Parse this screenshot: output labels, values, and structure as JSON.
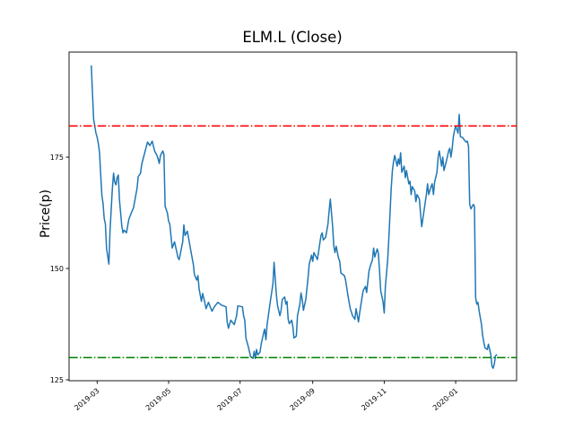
{
  "chart_data": {
    "type": "line",
    "title": "ELM.L (Close)",
    "xlabel": "",
    "ylabel": "Price(p)",
    "grid": false,
    "legend_position": "none",
    "line_color": "#1f77b4",
    "xlim": [
      "2019-02-05",
      "2020-02-22"
    ],
    "ylim": [
      124.8,
      198.6
    ],
    "yticks": [
      125,
      150,
      175
    ],
    "xticks": [
      {
        "date": "2019-03-01",
        "label": "2019-03"
      },
      {
        "date": "2019-05-01",
        "label": "2019-05"
      },
      {
        "date": "2019-07-01",
        "label": "2019-07"
      },
      {
        "date": "2019-09-01",
        "label": "2019-09"
      },
      {
        "date": "2019-11-01",
        "label": "2019-11"
      },
      {
        "date": "2020-01-01",
        "label": "2020-01"
      }
    ],
    "hlines": [
      {
        "name": "upper-threshold",
        "value": 182,
        "color": "#ff0000",
        "style": "dashdot"
      },
      {
        "name": "lower-threshold",
        "value": 130,
        "color": "#008000",
        "style": "dashdot"
      }
    ],
    "series_name": "Close",
    "series": [
      [
        "2019-02-24",
        195.5
      ],
      [
        "2019-02-25",
        189.5
      ],
      [
        "2019-02-26",
        183.5
      ],
      [
        "2019-02-28",
        180.4
      ],
      [
        "2019-03-01",
        179.4
      ],
      [
        "2019-03-02",
        178.0
      ],
      [
        "2019-03-03",
        176.0
      ],
      [
        "2019-03-04",
        171.0
      ],
      [
        "2019-03-05",
        166.4
      ],
      [
        "2019-03-06",
        164.6
      ],
      [
        "2019-03-07",
        161.2
      ],
      [
        "2019-03-08",
        160.0
      ],
      [
        "2019-03-09",
        154.5
      ],
      [
        "2019-03-10",
        152.8
      ],
      [
        "2019-03-11",
        151.0
      ],
      [
        "2019-03-12",
        158.6
      ],
      [
        "2019-03-14",
        168.0
      ],
      [
        "2019-03-15",
        171.4
      ],
      [
        "2019-03-16",
        169.4
      ],
      [
        "2019-03-17",
        168.8
      ],
      [
        "2019-03-18",
        170.4
      ],
      [
        "2019-03-19",
        171.0
      ],
      [
        "2019-03-20",
        165.4
      ],
      [
        "2019-03-22",
        159.6
      ],
      [
        "2019-03-23",
        158.0
      ],
      [
        "2019-03-24",
        158.6
      ],
      [
        "2019-03-26",
        158.0
      ],
      [
        "2019-03-28",
        161.0
      ],
      [
        "2019-03-30",
        162.4
      ],
      [
        "2019-03-31",
        163.0
      ],
      [
        "2019-04-01",
        163.6
      ],
      [
        "2019-04-04",
        168.0
      ],
      [
        "2019-04-05",
        170.6
      ],
      [
        "2019-04-07",
        171.4
      ],
      [
        "2019-04-08",
        173.4
      ],
      [
        "2019-04-09",
        174.4
      ],
      [
        "2019-04-11",
        176.4
      ],
      [
        "2019-04-13",
        178.4
      ],
      [
        "2019-04-15",
        177.6
      ],
      [
        "2019-04-17",
        178.6
      ],
      [
        "2019-04-19",
        176.4
      ],
      [
        "2019-04-21",
        175.4
      ],
      [
        "2019-04-22",
        174.6
      ],
      [
        "2019-04-23",
        173.6
      ],
      [
        "2019-04-24",
        175.4
      ],
      [
        "2019-04-26",
        176.4
      ],
      [
        "2019-04-27",
        175.6
      ],
      [
        "2019-04-28",
        164.0
      ],
      [
        "2019-04-30",
        162.4
      ],
      [
        "2019-05-01",
        160.6
      ],
      [
        "2019-05-02",
        160.0
      ],
      [
        "2019-05-04",
        154.6
      ],
      [
        "2019-05-06",
        156.0
      ],
      [
        "2019-05-09",
        152.4
      ],
      [
        "2019-05-10",
        152.0
      ],
      [
        "2019-05-13",
        156.0
      ],
      [
        "2019-05-14",
        159.8
      ],
      [
        "2019-05-15",
        157.4
      ],
      [
        "2019-05-17",
        158.4
      ],
      [
        "2019-05-19",
        155.4
      ],
      [
        "2019-05-22",
        151.0
      ],
      [
        "2019-05-23",
        148.6
      ],
      [
        "2019-05-25",
        147.4
      ],
      [
        "2019-05-26",
        148.4
      ],
      [
        "2019-05-27",
        145.4
      ],
      [
        "2019-05-29",
        142.6
      ],
      [
        "2019-05-30",
        144.4
      ],
      [
        "2019-05-31",
        143.4
      ],
      [
        "2019-06-02",
        141.0
      ],
      [
        "2019-06-04",
        142.4
      ],
      [
        "2019-06-07",
        140.4
      ],
      [
        "2019-06-09",
        141.4
      ],
      [
        "2019-06-12",
        142.4
      ],
      [
        "2019-06-15",
        141.8
      ],
      [
        "2019-06-17",
        141.6
      ],
      [
        "2019-06-19",
        141.4
      ],
      [
        "2019-06-20",
        138.0
      ],
      [
        "2019-06-21",
        136.6
      ],
      [
        "2019-06-23",
        138.4
      ],
      [
        "2019-06-26",
        137.4
      ],
      [
        "2019-06-28",
        139.4
      ],
      [
        "2019-06-29",
        141.6
      ],
      [
        "2019-07-03",
        141.4
      ],
      [
        "2019-07-04",
        139.4
      ],
      [
        "2019-07-05",
        138.4
      ],
      [
        "2019-07-06",
        134.4
      ],
      [
        "2019-07-08",
        132.4
      ],
      [
        "2019-07-10",
        130.2
      ],
      [
        "2019-07-12",
        129.8
      ],
      [
        "2019-07-13",
        131.4
      ],
      [
        "2019-07-14",
        129.8
      ],
      [
        "2019-07-15",
        131.8
      ],
      [
        "2019-07-16",
        130.6
      ],
      [
        "2019-07-18",
        131.2
      ],
      [
        "2019-07-19",
        133.0
      ],
      [
        "2019-07-21",
        135.4
      ],
      [
        "2019-07-22",
        136.4
      ],
      [
        "2019-07-23",
        134.0
      ],
      [
        "2019-07-24",
        137.4
      ],
      [
        "2019-07-27",
        143.0
      ],
      [
        "2019-07-29",
        146.5
      ],
      [
        "2019-07-30",
        151.4
      ],
      [
        "2019-08-01",
        144.0
      ],
      [
        "2019-08-02",
        141.6
      ],
      [
        "2019-08-04",
        139.4
      ],
      [
        "2019-08-05",
        140.6
      ],
      [
        "2019-08-06",
        143.0
      ],
      [
        "2019-08-08",
        143.6
      ],
      [
        "2019-08-09",
        142.0
      ],
      [
        "2019-08-10",
        142.6
      ],
      [
        "2019-08-11",
        138.6
      ],
      [
        "2019-08-12",
        137.6
      ],
      [
        "2019-08-14",
        138.4
      ],
      [
        "2019-08-15",
        137.0
      ],
      [
        "2019-08-16",
        134.4
      ],
      [
        "2019-08-18",
        134.8
      ],
      [
        "2019-08-19",
        139.4
      ],
      [
        "2019-08-21",
        142.0
      ],
      [
        "2019-08-22",
        144.5
      ],
      [
        "2019-08-23",
        143.0
      ],
      [
        "2019-08-24",
        140.6
      ],
      [
        "2019-08-26",
        143.0
      ],
      [
        "2019-08-27",
        145.4
      ],
      [
        "2019-08-28",
        148.0
      ],
      [
        "2019-08-29",
        151.0
      ],
      [
        "2019-08-31",
        153.0
      ],
      [
        "2019-09-01",
        151.6
      ],
      [
        "2019-09-02",
        153.6
      ],
      [
        "2019-09-05",
        152.0
      ],
      [
        "2019-09-08",
        157.4
      ],
      [
        "2019-09-09",
        158.0
      ],
      [
        "2019-09-10",
        156.4
      ],
      [
        "2019-09-12",
        157.0
      ],
      [
        "2019-09-14",
        160.0
      ],
      [
        "2019-09-15",
        163.0
      ],
      [
        "2019-09-16",
        165.6
      ],
      [
        "2019-09-18",
        159.4
      ],
      [
        "2019-09-19",
        155.0
      ],
      [
        "2019-09-20",
        153.6
      ],
      [
        "2019-09-21",
        155.0
      ],
      [
        "2019-09-23",
        152.4
      ],
      [
        "2019-09-24",
        151.6
      ],
      [
        "2019-09-25",
        149.0
      ],
      [
        "2019-09-27",
        148.6
      ],
      [
        "2019-09-28",
        148.4
      ],
      [
        "2019-09-29",
        147.4
      ],
      [
        "2019-10-01",
        144.0
      ],
      [
        "2019-10-03",
        141.0
      ],
      [
        "2019-10-05",
        139.4
      ],
      [
        "2019-10-07",
        138.6
      ],
      [
        "2019-10-08",
        141.0
      ],
      [
        "2019-10-10",
        138.0
      ],
      [
        "2019-10-11",
        140.0
      ],
      [
        "2019-10-13",
        143.4
      ],
      [
        "2019-10-14",
        145.0
      ],
      [
        "2019-10-16",
        146.0
      ],
      [
        "2019-10-17",
        144.6
      ],
      [
        "2019-10-18",
        147.0
      ],
      [
        "2019-10-19",
        149.4
      ],
      [
        "2019-10-20",
        150.4
      ],
      [
        "2019-10-22",
        152.0
      ],
      [
        "2019-10-23",
        154.6
      ],
      [
        "2019-10-24",
        152.6
      ],
      [
        "2019-10-26",
        154.4
      ],
      [
        "2019-10-27",
        153.4
      ],
      [
        "2019-10-28",
        149.4
      ],
      [
        "2019-10-29",
        145.0
      ],
      [
        "2019-10-31",
        142.5
      ],
      [
        "2019-11-01",
        140.0
      ],
      [
        "2019-11-02",
        146.0
      ],
      [
        "2019-11-04",
        152.0
      ],
      [
        "2019-11-05",
        157.0
      ],
      [
        "2019-11-06",
        162.5
      ],
      [
        "2019-11-07",
        168.0
      ],
      [
        "2019-11-08",
        172.0
      ],
      [
        "2019-11-09",
        174.0
      ],
      [
        "2019-11-10",
        175.4
      ],
      [
        "2019-11-12",
        173.0
      ],
      [
        "2019-11-13",
        174.6
      ],
      [
        "2019-11-14",
        173.4
      ],
      [
        "2019-11-15",
        176.0
      ],
      [
        "2019-11-16",
        171.6
      ],
      [
        "2019-11-18",
        173.0
      ],
      [
        "2019-11-19",
        170.4
      ],
      [
        "2019-11-20",
        172.0
      ],
      [
        "2019-11-22",
        169.0
      ],
      [
        "2019-11-23",
        169.6
      ],
      [
        "2019-11-24",
        166.6
      ],
      [
        "2019-11-25",
        168.4
      ],
      [
        "2019-11-27",
        167.4
      ],
      [
        "2019-11-28",
        165.0
      ],
      [
        "2019-11-29",
        166.6
      ],
      [
        "2019-12-01",
        165.6
      ],
      [
        "2019-12-02",
        162.4
      ],
      [
        "2019-12-03",
        159.4
      ],
      [
        "2019-12-05",
        163.0
      ],
      [
        "2019-12-07",
        166.6
      ],
      [
        "2019-12-08",
        169.0
      ],
      [
        "2019-12-09",
        166.6
      ],
      [
        "2019-12-11",
        168.4
      ],
      [
        "2019-12-12",
        169.0
      ],
      [
        "2019-12-13",
        166.6
      ],
      [
        "2019-12-14",
        169.4
      ],
      [
        "2019-12-16",
        171.6
      ],
      [
        "2019-12-17",
        175.0
      ],
      [
        "2019-12-18",
        176.4
      ],
      [
        "2019-12-20",
        173.0
      ],
      [
        "2019-12-21",
        175.0
      ],
      [
        "2019-12-22",
        172.0
      ],
      [
        "2019-12-24",
        174.0
      ],
      [
        "2019-12-26",
        176.4
      ],
      [
        "2019-12-27",
        177.0
      ],
      [
        "2019-12-28",
        175.0
      ],
      [
        "2019-12-29",
        177.0
      ],
      [
        "2019-12-30",
        179.6
      ],
      [
        "2019-12-31",
        181.0
      ],
      [
        "2020-01-01",
        182.0
      ],
      [
        "2020-01-03",
        180.4
      ],
      [
        "2020-01-04",
        184.6
      ],
      [
        "2020-01-05",
        179.6
      ],
      [
        "2020-01-07",
        179.4
      ],
      [
        "2020-01-08",
        179.0
      ],
      [
        "2020-01-10",
        178.4
      ],
      [
        "2020-01-11",
        178.6
      ],
      [
        "2020-01-12",
        177.4
      ],
      [
        "2020-01-13",
        164.4
      ],
      [
        "2020-01-14",
        163.4
      ],
      [
        "2020-01-16",
        164.4
      ],
      [
        "2020-01-17",
        164.0
      ],
      [
        "2020-01-18",
        143.5
      ],
      [
        "2020-01-19",
        142.0
      ],
      [
        "2020-01-20",
        142.4
      ],
      [
        "2020-01-21",
        140.5
      ],
      [
        "2020-01-23",
        137.5
      ],
      [
        "2020-01-24",
        135.0
      ],
      [
        "2020-01-25",
        133.5
      ],
      [
        "2020-01-26",
        132.2
      ],
      [
        "2020-01-28",
        131.8
      ],
      [
        "2020-01-29",
        133.0
      ],
      [
        "2020-01-31",
        130.6
      ],
      [
        "2020-02-01",
        128.0
      ],
      [
        "2020-02-02",
        127.6
      ],
      [
        "2020-02-03",
        128.6
      ],
      [
        "2020-02-04",
        130.4
      ],
      [
        "2020-02-05",
        130.6
      ]
    ]
  }
}
